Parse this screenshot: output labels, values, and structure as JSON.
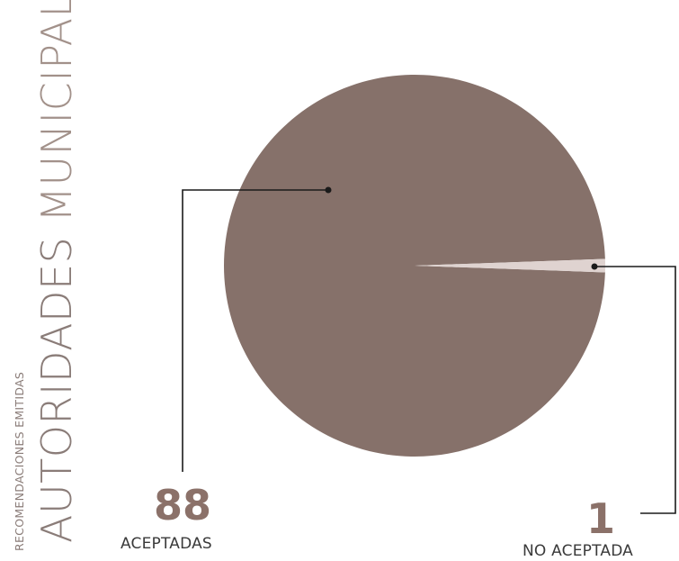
{
  "title": {
    "subtitle": "RECOMENDACIONES EMITIDAS",
    "line1": "AUTORIDADES",
    "line2": "MUNICIPALES"
  },
  "chart_data": {
    "type": "pie",
    "slices": [
      {
        "label": "ACEPTADAS",
        "value": 88,
        "color": "#86716a"
      },
      {
        "label": "NO ACEPTADA",
        "value": 1,
        "color": "#dfd3d0"
      }
    ],
    "legend": "none"
  },
  "labels": {
    "accepted": {
      "value": "88",
      "label": "ACEPTADAS"
    },
    "not_accepted": {
      "value": "1",
      "label": "NO ACEPTADA"
    }
  }
}
